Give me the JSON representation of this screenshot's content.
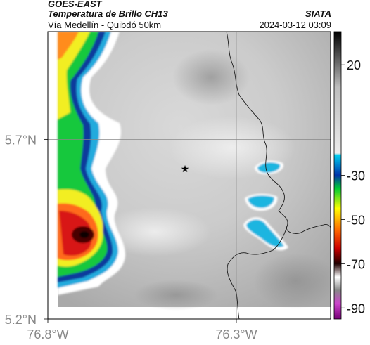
{
  "header": {
    "satellite": "GOES-EAST",
    "product": "Temperatura de Brillo CH13",
    "region": "Vía Medellín - Quibdó 50km",
    "agency": "SIATA",
    "datetime": "2024-03-12 03:09"
  },
  "axes": {
    "lat_labels": [
      "5.7°N",
      "5.2°N"
    ],
    "lon_labels": [
      "76.8°W",
      "76.3°W"
    ],
    "lat_range": [
      5.2,
      6.0
    ],
    "lon_range": [
      -76.8,
      -76.05
    ]
  },
  "gridlines": {
    "lat": [
      5.7
    ],
    "lon": [
      -76.3
    ]
  },
  "colorbar": {
    "tick_labels": [
      "20",
      "-30",
      "-50",
      "-70",
      "-90"
    ],
    "ticks": [
      20,
      -30,
      -50,
      -70,
      -90
    ],
    "range": [
      -95,
      35
    ],
    "scale": [
      {
        "v": 35,
        "c": "#000000"
      },
      {
        "v": 10,
        "c": "#bdbdbd"
      },
      {
        "v": -20,
        "c": "#ececec"
      },
      {
        "v": -21,
        "c": "#00ccee"
      },
      {
        "v": -30,
        "c": "#0033aa"
      },
      {
        "v": -36,
        "c": "#00cc33"
      },
      {
        "v": -45,
        "c": "#ffff00"
      },
      {
        "v": -55,
        "c": "#ff6600"
      },
      {
        "v": -63,
        "c": "#cc0000"
      },
      {
        "v": -70,
        "c": "#220000"
      },
      {
        "v": -76,
        "c": "#ffffff"
      },
      {
        "v": -82,
        "c": "#888888"
      },
      {
        "v": -88,
        "c": "#cc44cc"
      },
      {
        "v": -95,
        "c": "#770077"
      }
    ]
  },
  "marker": {
    "symbol": "★"
  },
  "colors": {
    "background": "#ffffff",
    "frame": "#000000",
    "grid": "#888888",
    "border_line": "#1a1a1a",
    "label": "#888888"
  }
}
